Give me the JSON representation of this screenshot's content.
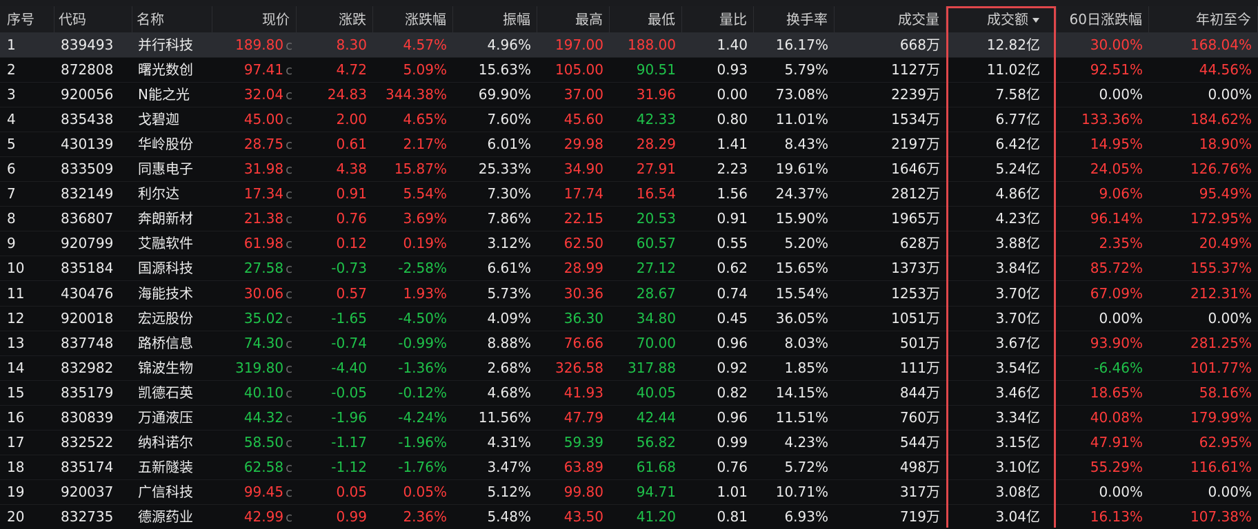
{
  "table": {
    "price_suffix": "c",
    "columns": [
      "序号",
      "代码",
      "名称",
      "现价",
      "涨跌",
      "涨跌幅",
      "振幅",
      "最高",
      "最低",
      "量比",
      "换手率",
      "成交量",
      "成交额",
      "60日涨跌幅",
      "年初至今"
    ],
    "rows": [
      [
        "1",
        "839493",
        "并行科技",
        "189.80",
        "8.30",
        "4.57%",
        "4.96%",
        "197.00",
        "188.00",
        "1.40",
        "16.17%",
        "668万",
        "12.82亿",
        "30.00%",
        "168.04%"
      ],
      [
        "2",
        "872808",
        "曙光数创",
        "97.41",
        "4.72",
        "5.09%",
        "15.63%",
        "105.00",
        "90.51",
        "0.93",
        "5.79%",
        "1127万",
        "11.02亿",
        "92.51%",
        "44.56%"
      ],
      [
        "3",
        "920056",
        "N能之光",
        "32.04",
        "24.83",
        "344.38%",
        "69.90%",
        "37.00",
        "31.96",
        "0.00",
        "73.08%",
        "2239万",
        "7.58亿",
        "0.00%",
        "0.00%"
      ],
      [
        "4",
        "835438",
        "戈碧迦",
        "45.00",
        "2.00",
        "4.65%",
        "7.60%",
        "45.60",
        "42.33",
        "0.80",
        "11.01%",
        "1534万",
        "6.77亿",
        "133.36%",
        "184.62%"
      ],
      [
        "5",
        "430139",
        "华岭股份",
        "28.75",
        "0.61",
        "2.17%",
        "6.01%",
        "29.98",
        "28.29",
        "1.41",
        "8.43%",
        "2197万",
        "6.42亿",
        "14.95%",
        "18.90%"
      ],
      [
        "6",
        "833509",
        "同惠电子",
        "31.98",
        "4.38",
        "15.87%",
        "25.33%",
        "34.90",
        "27.91",
        "2.23",
        "19.61%",
        "1646万",
        "5.24亿",
        "24.05%",
        "126.76%"
      ],
      [
        "7",
        "832149",
        "利尔达",
        "17.34",
        "0.91",
        "5.54%",
        "7.30%",
        "17.74",
        "16.54",
        "1.56",
        "24.37%",
        "2812万",
        "4.86亿",
        "9.06%",
        "95.49%"
      ],
      [
        "8",
        "836807",
        "奔朗新材",
        "21.38",
        "0.76",
        "3.69%",
        "7.86%",
        "22.15",
        "20.53",
        "0.91",
        "15.90%",
        "1965万",
        "4.23亿",
        "96.14%",
        "172.95%"
      ],
      [
        "9",
        "920799",
        "艾融软件",
        "61.98",
        "0.12",
        "0.19%",
        "3.12%",
        "62.50",
        "60.57",
        "0.55",
        "5.20%",
        "628万",
        "3.88亿",
        "2.35%",
        "20.49%"
      ],
      [
        "10",
        "835184",
        "国源科技",
        "27.58",
        "-0.73",
        "-2.58%",
        "6.61%",
        "28.99",
        "27.12",
        "0.62",
        "15.65%",
        "1373万",
        "3.84亿",
        "85.72%",
        "155.37%"
      ],
      [
        "11",
        "430476",
        "海能技术",
        "30.06",
        "0.57",
        "1.93%",
        "5.73%",
        "30.36",
        "28.67",
        "0.74",
        "15.54%",
        "1253万",
        "3.70亿",
        "67.09%",
        "212.31%"
      ],
      [
        "12",
        "920018",
        "宏远股份",
        "35.02",
        "-1.65",
        "-4.50%",
        "4.09%",
        "36.30",
        "34.80",
        "0.45",
        "36.05%",
        "1051万",
        "3.70亿",
        "0.00%",
        "0.00%"
      ],
      [
        "13",
        "837748",
        "路桥信息",
        "74.30",
        "-0.74",
        "-0.99%",
        "8.88%",
        "76.66",
        "70.00",
        "0.96",
        "8.03%",
        "501万",
        "3.67亿",
        "93.90%",
        "281.25%"
      ],
      [
        "14",
        "832982",
        "锦波生物",
        "319.80",
        "-4.40",
        "-1.36%",
        "2.68%",
        "326.58",
        "317.88",
        "0.92",
        "1.85%",
        "111万",
        "3.54亿",
        "-6.46%",
        "101.77%"
      ],
      [
        "15",
        "835179",
        "凯德石英",
        "40.10",
        "-0.05",
        "-0.12%",
        "4.68%",
        "41.93",
        "40.05",
        "0.82",
        "14.15%",
        "844万",
        "3.46亿",
        "18.65%",
        "58.16%"
      ],
      [
        "16",
        "830839",
        "万通液压",
        "44.32",
        "-1.96",
        "-4.24%",
        "11.56%",
        "47.79",
        "42.44",
        "0.96",
        "11.51%",
        "760万",
        "3.34亿",
        "40.08%",
        "179.99%"
      ],
      [
        "17",
        "832522",
        "纳科诺尔",
        "58.50",
        "-1.17",
        "-1.96%",
        "4.31%",
        "59.39",
        "56.82",
        "0.99",
        "4.23%",
        "544万",
        "3.15亿",
        "47.91%",
        "62.95%"
      ],
      [
        "18",
        "835174",
        "五新隧装",
        "62.58",
        "-1.12",
        "-1.76%",
        "3.47%",
        "63.89",
        "61.68",
        "0.76",
        "5.72%",
        "498万",
        "3.10亿",
        "55.29%",
        "116.61%"
      ],
      [
        "19",
        "920037",
        "广信科技",
        "99.45",
        "0.05",
        "0.05%",
        "5.12%",
        "99.80",
        "94.71",
        "1.01",
        "10.71%",
        "317万",
        "3.08亿",
        "0.00%",
        "0.00%"
      ],
      [
        "20",
        "832735",
        "德源药业",
        "42.99",
        "0.99",
        "2.36%",
        "5.48%",
        "43.50",
        "41.20",
        "0.81",
        "6.93%",
        "719万",
        "3.04亿",
        "16.13%",
        "107.38%"
      ]
    ]
  }
}
